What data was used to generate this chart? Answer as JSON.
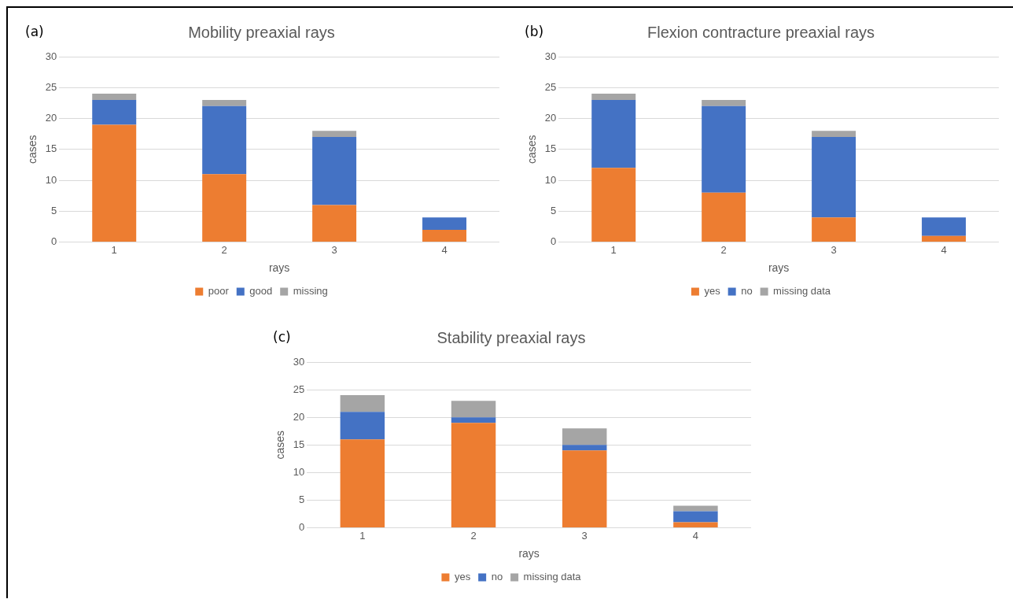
{
  "chart_data": [
    {
      "type": "bar",
      "title": "Mobility preaxial rays",
      "xlabel": "rays",
      "ylabel": "cases",
      "annotations": [
        "(a)"
      ],
      "categories": [
        "1",
        "2",
        "3",
        "4"
      ],
      "stacked": true,
      "ylim": [
        0,
        30
      ],
      "yticks": [
        0,
        5,
        10,
        15,
        20,
        25,
        30
      ],
      "grid": "y",
      "legend": "bottom",
      "series": [
        {
          "name": "poor",
          "color": "#ed7d31",
          "values": [
            19,
            11,
            6,
            2
          ]
        },
        {
          "name": "good",
          "color": "#4472c4",
          "values": [
            4,
            11,
            11,
            2
          ]
        },
        {
          "name": "missing",
          "color": "#a5a5a5",
          "values": [
            1,
            1,
            1,
            0
          ]
        }
      ]
    },
    {
      "type": "bar",
      "title": "Flexion contracture preaxial rays",
      "xlabel": "rays",
      "ylabel": "cases",
      "annotations": [
        "(b)"
      ],
      "categories": [
        "1",
        "2",
        "3",
        "4"
      ],
      "stacked": true,
      "ylim": [
        0,
        30
      ],
      "yticks": [
        0,
        5,
        10,
        15,
        20,
        25,
        30
      ],
      "grid": "y",
      "legend": "bottom",
      "series": [
        {
          "name": "yes",
          "color": "#ed7d31",
          "values": [
            12,
            8,
            4,
            1
          ]
        },
        {
          "name": "no",
          "color": "#4472c4",
          "values": [
            11,
            14,
            13,
            3
          ]
        },
        {
          "name": "missing data",
          "color": "#a5a5a5",
          "values": [
            1,
            1,
            1,
            0
          ]
        }
      ]
    },
    {
      "type": "bar",
      "title": "Stability preaxial rays",
      "xlabel": "rays",
      "ylabel": "cases",
      "annotations": [
        "(c)"
      ],
      "categories": [
        "1",
        "2",
        "3",
        "4"
      ],
      "stacked": true,
      "ylim": [
        0,
        30
      ],
      "yticks": [
        0,
        5,
        10,
        15,
        20,
        25,
        30
      ],
      "grid": "y",
      "legend": "bottom",
      "series": [
        {
          "name": "yes",
          "color": "#ed7d31",
          "values": [
            16,
            19,
            14,
            1
          ]
        },
        {
          "name": "no",
          "color": "#4472c4",
          "values": [
            5,
            1,
            1,
            2
          ]
        },
        {
          "name": "missing data",
          "color": "#a5a5a5",
          "values": [
            3,
            3,
            3,
            1
          ]
        }
      ]
    }
  ]
}
